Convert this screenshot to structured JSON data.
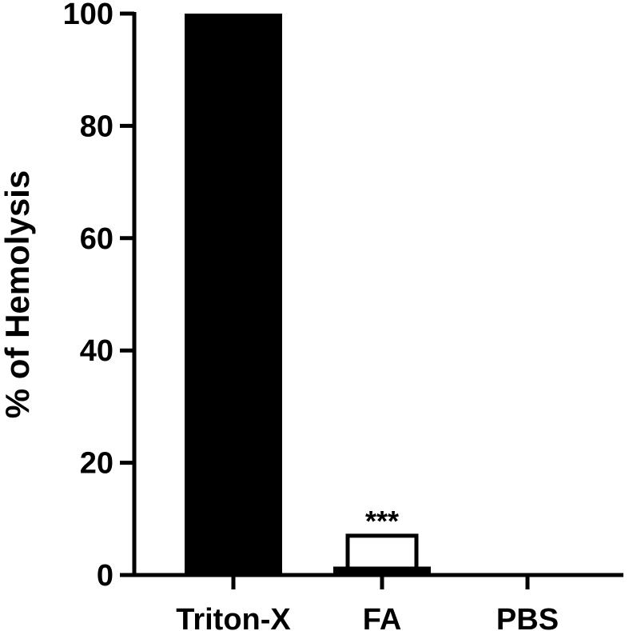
{
  "chart_data": {
    "type": "bar",
    "categories": [
      "Triton-X",
      "FA",
      "PBS"
    ],
    "values": [
      100,
      1.5,
      0
    ],
    "ylabel": "% of Hemolysis",
    "xlabel": "",
    "ylim": [
      0,
      100
    ],
    "yticks": [
      0,
      20,
      40,
      60,
      80,
      100
    ],
    "grid": false,
    "legend": "none",
    "bar_color": "#000000",
    "error_bars": [
      {
        "category": "FA",
        "value": 1.5,
        "upper": 7,
        "label": "***"
      }
    ]
  }
}
